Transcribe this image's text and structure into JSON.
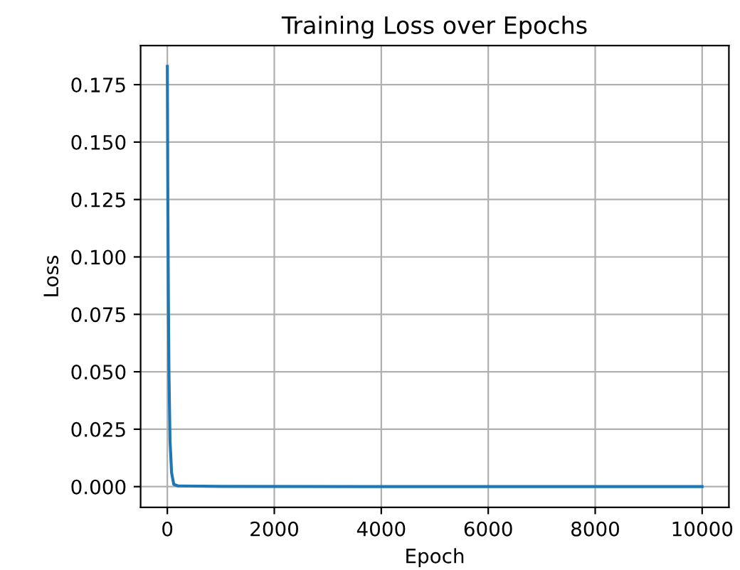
{
  "chart_data": {
    "type": "line",
    "title": "Training Loss over Epochs",
    "xlabel": "Epoch",
    "ylabel": "Loss",
    "x": [
      0,
      10,
      20,
      30,
      50,
      80,
      120,
      200,
      1000,
      5000,
      9999
    ],
    "series": [
      {
        "color": "#1f77b4",
        "values": [
          0.183,
          0.12,
          0.08,
          0.05,
          0.02,
          0.006,
          0.001,
          0.0003,
          0.0001,
          0.0,
          0.0
        ]
      }
    ],
    "xlim": [
      -500,
      10500
    ],
    "ylim": [
      -0.009,
      0.192
    ],
    "xticks": [
      0,
      2000,
      4000,
      6000,
      8000,
      10000
    ],
    "yticks": [
      {
        "value": 0,
        "label": "0.000"
      },
      {
        "value": 0.025,
        "label": "0.025"
      },
      {
        "value": 0.05,
        "label": "0.050"
      },
      {
        "value": 0.075,
        "label": "0.075"
      },
      {
        "value": 0.1,
        "label": "0.100"
      },
      {
        "value": 0.125,
        "label": "0.125"
      },
      {
        "value": 0.15,
        "label": "0.150"
      },
      {
        "value": 0.175,
        "label": "0.175"
      }
    ],
    "grid": true,
    "legend": false,
    "marker": "none",
    "line_style": "solid"
  }
}
